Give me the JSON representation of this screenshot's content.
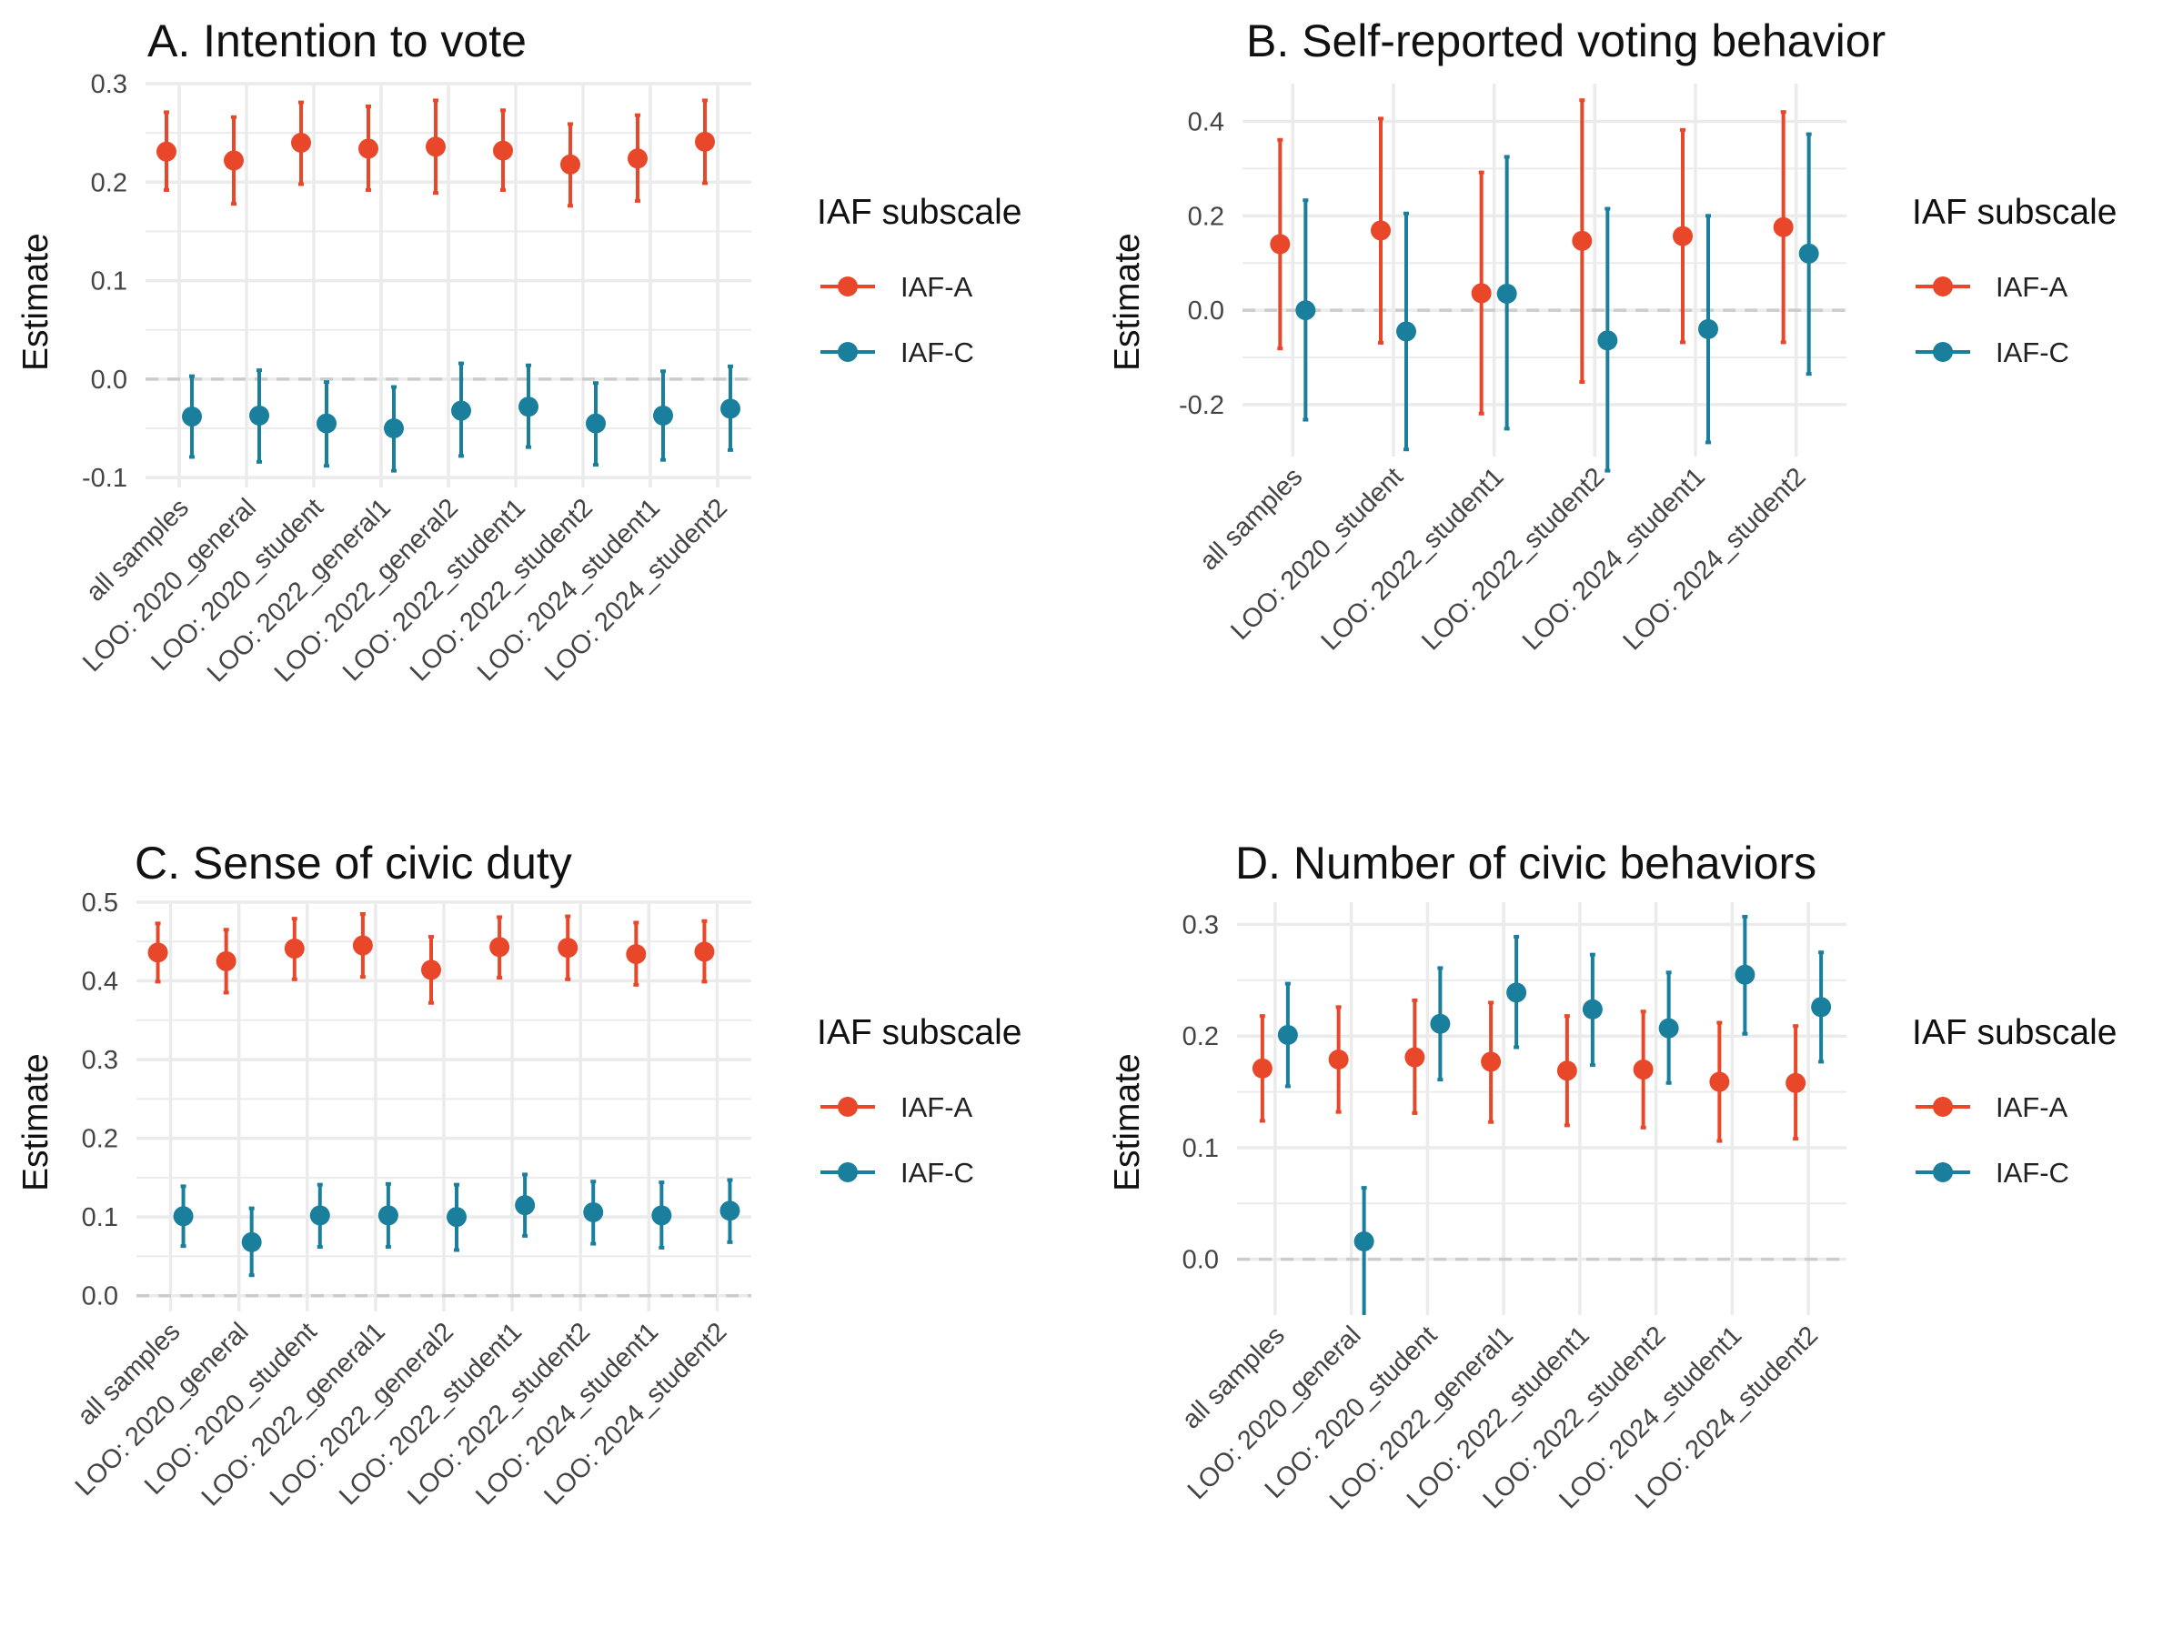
{
  "colors": {
    "iaf_a": "#e8472a",
    "iaf_c": "#1a7f9c",
    "grid": "#ebebeb",
    "zero": "#cccccc",
    "tick": "#444444"
  },
  "legend": {
    "title": "IAF subscale",
    "items": [
      "IAF-A",
      "IAF-C"
    ]
  },
  "chart_data": [
    {
      "type": "scatter",
      "title": "A. Intention to vote",
      "xlabel": "",
      "ylabel": "Estimate",
      "ylim": [
        -0.11,
        0.3
      ],
      "yticks": [
        -0.1,
        0.0,
        0.1,
        0.2,
        0.3
      ],
      "ytick_labels": [
        "-0.1",
        "0.0",
        "0.1",
        "0.2",
        "0.3"
      ],
      "categories": [
        "all samples",
        "LOO: 2020_general",
        "LOO: 2020_student",
        "LOO: 2022_general1",
        "LOO: 2022_general2",
        "LOO: 2022_student1",
        "LOO: 2022_student2",
        "LOO: 2024_student1",
        "LOO: 2024_student2"
      ],
      "series": [
        {
          "name": "IAF-A",
          "values": [
            0.231,
            0.222,
            0.24,
            0.234,
            0.236,
            0.232,
            0.218,
            0.224,
            0.241
          ],
          "lower": [
            0.192,
            0.178,
            0.198,
            0.192,
            0.189,
            0.192,
            0.176,
            0.181,
            0.199
          ],
          "upper": [
            0.271,
            0.266,
            0.281,
            0.277,
            0.283,
            0.273,
            0.259,
            0.268,
            0.283
          ]
        },
        {
          "name": "IAF-C",
          "values": [
            -0.038,
            -0.037,
            -0.045,
            -0.05,
            -0.032,
            -0.028,
            -0.045,
            -0.037,
            -0.03
          ],
          "lower": [
            -0.079,
            -0.084,
            -0.088,
            -0.093,
            -0.078,
            -0.069,
            -0.087,
            -0.082,
            -0.072
          ],
          "upper": [
            0.003,
            0.009,
            -0.003,
            -0.008,
            0.016,
            0.014,
            -0.004,
            0.008,
            0.013
          ]
        }
      ]
    },
    {
      "type": "scatter",
      "title": "B. Self-reported voting behavior",
      "xlabel": "",
      "ylabel": "Estimate",
      "ylim": [
        -0.31,
        0.48
      ],
      "yticks": [
        -0.2,
        0.0,
        0.2,
        0.4
      ],
      "ytick_labels": [
        "-0.2",
        "0.0",
        "0.2",
        "0.4"
      ],
      "categories": [
        "all samples",
        "LOO: 2020_student",
        "LOO: 2022_student1",
        "LOO: 2022_student2",
        "LOO: 2024_student1",
        "LOO: 2024_student2"
      ],
      "series": [
        {
          "name": "IAF-A",
          "values": [
            0.14,
            0.169,
            0.036,
            0.147,
            0.157,
            0.176
          ],
          "lower": [
            -0.081,
            -0.069,
            -0.219,
            -0.152,
            -0.068,
            -0.068
          ],
          "upper": [
            0.361,
            0.406,
            0.292,
            0.445,
            0.382,
            0.42
          ]
        },
        {
          "name": "IAF-C",
          "values": [
            0.0,
            -0.045,
            0.035,
            -0.064,
            -0.04,
            0.12
          ],
          "lower": [
            -0.232,
            -0.295,
            -0.251,
            -0.34,
            -0.28,
            -0.135
          ],
          "upper": [
            0.233,
            0.205,
            0.325,
            0.215,
            0.2,
            0.373
          ]
        }
      ]
    },
    {
      "type": "scatter",
      "title": "C. Sense of civic duty",
      "xlabel": "",
      "ylabel": "Estimate",
      "ylim": [
        -0.02,
        0.5
      ],
      "yticks": [
        0.0,
        0.1,
        0.2,
        0.3,
        0.4,
        0.5
      ],
      "ytick_labels": [
        "0.0",
        "0.1",
        "0.2",
        "0.3",
        "0.4",
        "0.5"
      ],
      "categories": [
        "all samples",
        "LOO: 2020_general",
        "LOO: 2020_student",
        "LOO: 2022_general1",
        "LOO: 2022_general2",
        "LOO: 2022_student1",
        "LOO: 2022_student2",
        "LOO: 2024_student1",
        "LOO: 2024_student2"
      ],
      "series": [
        {
          "name": "IAF-A",
          "values": [
            0.436,
            0.425,
            0.441,
            0.445,
            0.414,
            0.443,
            0.442,
            0.434,
            0.437
          ],
          "lower": [
            0.399,
            0.385,
            0.402,
            0.405,
            0.372,
            0.404,
            0.402,
            0.395,
            0.399
          ],
          "upper": [
            0.473,
            0.465,
            0.479,
            0.485,
            0.456,
            0.481,
            0.482,
            0.474,
            0.476
          ]
        },
        {
          "name": "IAF-C",
          "values": [
            0.101,
            0.068,
            0.102,
            0.102,
            0.1,
            0.115,
            0.106,
            0.102,
            0.108
          ],
          "lower": [
            0.063,
            0.026,
            0.062,
            0.062,
            0.058,
            0.076,
            0.066,
            0.061,
            0.068
          ],
          "upper": [
            0.139,
            0.111,
            0.141,
            0.142,
            0.141,
            0.154,
            0.145,
            0.144,
            0.147
          ]
        }
      ]
    },
    {
      "type": "scatter",
      "title": "D. Number of civic behaviors",
      "xlabel": "",
      "ylabel": "Estimate",
      "ylim": [
        -0.05,
        0.32
      ],
      "yticks": [
        0.0,
        0.1,
        0.2,
        0.3
      ],
      "ytick_labels": [
        "0.0",
        "0.1",
        "0.2",
        "0.3"
      ],
      "categories": [
        "all samples",
        "LOO: 2020_general",
        "LOO: 2020_student",
        "LOO: 2022_general1",
        "LOO: 2022_student1",
        "LOO: 2022_student2",
        "LOO: 2024_student1",
        "LOO: 2024_student2"
      ],
      "series": [
        {
          "name": "IAF-A",
          "values": [
            0.171,
            0.179,
            0.181,
            0.177,
            0.169,
            0.17,
            0.159,
            0.158
          ],
          "lower": [
            0.124,
            0.132,
            0.131,
            0.123,
            0.12,
            0.118,
            0.106,
            0.108
          ],
          "upper": [
            0.218,
            0.226,
            0.232,
            0.23,
            0.218,
            0.222,
            0.212,
            0.209
          ]
        },
        {
          "name": "IAF-C",
          "values": [
            0.201,
            0.016,
            0.211,
            0.239,
            0.224,
            0.207,
            0.255,
            0.226
          ],
          "lower": [
            0.155,
            null,
            0.161,
            0.19,
            0.174,
            0.158,
            0.202,
            0.177
          ],
          "upper": [
            0.247,
            0.064,
            0.261,
            0.289,
            0.273,
            0.257,
            0.307,
            0.275
          ]
        }
      ]
    }
  ]
}
